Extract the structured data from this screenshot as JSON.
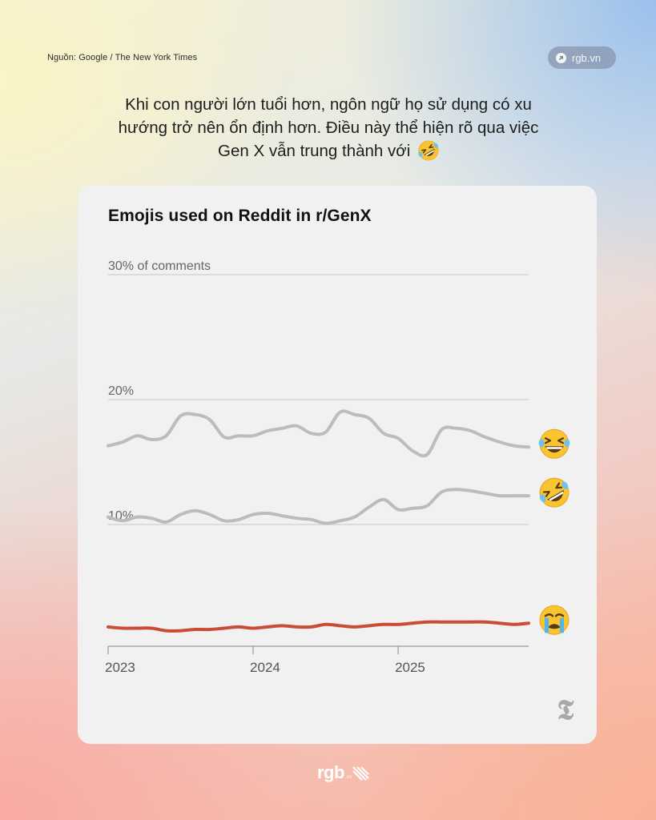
{
  "source": "Nguồn: Google / The New York Times",
  "brand_pill": {
    "label": "rgb.vn",
    "icon": "arrow-up-right-icon"
  },
  "headline": "Khi con người lớn tuổi hơn, ngôn ngữ họ sử dụng có xu hướng trở nên ổn định hơn. Điều này thể hiện rõ qua việc Gen X vẫn trung thành với",
  "headline_emoji": "rolling-on-floor-laughing-emoji",
  "footer_logo": {
    "word": "rgb",
    "sub": ".vn"
  },
  "colors": {
    "highlight": "#c94c35",
    "muted_line": "#bcbcbc",
    "grid": "#cfcfd1",
    "card": "#f1f1f2"
  },
  "chart_data": {
    "type": "line",
    "title": "Emojis used on Reddit in r/GenX",
    "ylim": [
      0,
      30
    ],
    "y_ticks": [
      {
        "value": 10,
        "label": "10%"
      },
      {
        "value": 20,
        "label": "20%"
      },
      {
        "value": 30,
        "label": "30% of comments"
      }
    ],
    "x_range": [
      2023.0,
      2025.9
    ],
    "x_ticks": [
      {
        "value": 2023,
        "label": "2023"
      },
      {
        "value": 2024,
        "label": "2024"
      },
      {
        "value": 2025,
        "label": "2025"
      }
    ],
    "grid": true,
    "series": [
      {
        "emoji": "face-with-tears-of-joy-emoji",
        "highlight": false,
        "x": [
          2023.0,
          2023.1,
          2023.2,
          2023.3,
          2023.4,
          2023.5,
          2023.6,
          2023.7,
          2023.8,
          2023.9,
          2024.0,
          2024.1,
          2024.2,
          2024.3,
          2024.4,
          2024.5,
          2024.6,
          2024.7,
          2024.8,
          2024.9,
          2025.0,
          2025.1,
          2025.2,
          2025.3,
          2025.4,
          2025.5,
          2025.6,
          2025.7,
          2025.8,
          2025.9
        ],
        "values": [
          16.3,
          16.6,
          17.1,
          16.8,
          17.1,
          18.7,
          18.8,
          18.4,
          17.0,
          17.1,
          17.1,
          17.5,
          17.7,
          17.9,
          17.3,
          17.4,
          19.0,
          18.8,
          18.5,
          17.3,
          16.9,
          15.9,
          15.6,
          17.6,
          17.7,
          17.5,
          17.0,
          16.6,
          16.3,
          16.2
        ]
      },
      {
        "emoji": "rolling-on-floor-laughing-emoji",
        "highlight": false,
        "x": [
          2023.0,
          2023.1,
          2023.2,
          2023.3,
          2023.4,
          2023.5,
          2023.6,
          2023.7,
          2023.8,
          2023.9,
          2024.0,
          2024.1,
          2024.2,
          2024.3,
          2024.4,
          2024.5,
          2024.6,
          2024.7,
          2024.8,
          2024.9,
          2025.0,
          2025.1,
          2025.2,
          2025.3,
          2025.4,
          2025.5,
          2025.6,
          2025.7,
          2025.8,
          2025.9
        ],
        "values": [
          10.6,
          10.3,
          10.6,
          10.5,
          10.2,
          10.8,
          11.1,
          10.8,
          10.3,
          10.4,
          10.8,
          10.9,
          10.7,
          10.5,
          10.4,
          10.1,
          10.3,
          10.6,
          11.4,
          12.0,
          11.2,
          11.3,
          11.5,
          12.6,
          12.8,
          12.7,
          12.5,
          12.3,
          12.3,
          12.3
        ]
      },
      {
        "emoji": "loudly-crying-face-emoji",
        "highlight": true,
        "x": [
          2023.0,
          2023.1,
          2023.2,
          2023.3,
          2023.4,
          2023.5,
          2023.6,
          2023.7,
          2023.8,
          2023.9,
          2024.0,
          2024.1,
          2024.2,
          2024.3,
          2024.4,
          2024.5,
          2024.6,
          2024.7,
          2024.8,
          2024.9,
          2025.0,
          2025.1,
          2025.2,
          2025.3,
          2025.4,
          2025.5,
          2025.6,
          2025.7,
          2025.8,
          2025.9
        ],
        "values": [
          1.8,
          1.7,
          1.7,
          1.7,
          1.5,
          1.5,
          1.6,
          1.6,
          1.7,
          1.8,
          1.7,
          1.8,
          1.9,
          1.8,
          1.8,
          2.0,
          1.9,
          1.8,
          1.9,
          2.0,
          2.0,
          2.1,
          2.2,
          2.2,
          2.2,
          2.2,
          2.2,
          2.1,
          2.0,
          2.1
        ]
      }
    ]
  }
}
